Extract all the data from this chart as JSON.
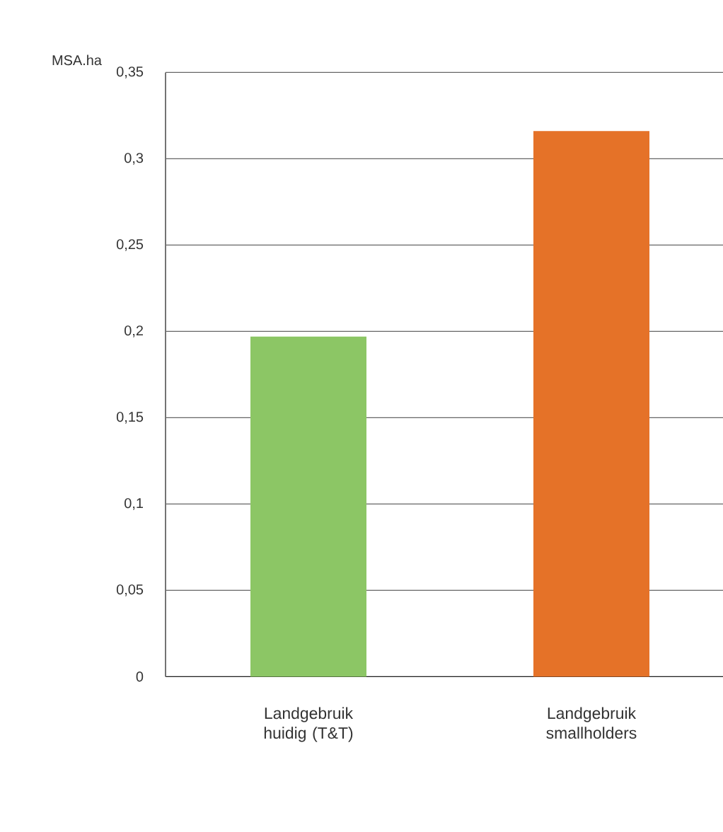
{
  "chart_data": {
    "type": "bar",
    "ylabel": "MSA.ha",
    "categories": [
      "Landgebruik huidig (T&T)",
      "Landgebruik smallholders"
    ],
    "values": [
      0.197,
      0.316
    ],
    "colors": [
      "#8cc665",
      "#e57228"
    ],
    "ylim": [
      0,
      0.35
    ],
    "yticks": [
      {
        "value": 0,
        "label": "0"
      },
      {
        "value": 0.05,
        "label": "0,05"
      },
      {
        "value": 0.1,
        "label": "0,1"
      },
      {
        "value": 0.15,
        "label": "0,15"
      },
      {
        "value": 0.2,
        "label": "0,2"
      },
      {
        "value": 0.25,
        "label": "0,25"
      },
      {
        "value": 0.3,
        "label": "0,3"
      },
      {
        "value": 0.35,
        "label": "0,35"
      }
    ],
    "grid": "y"
  }
}
